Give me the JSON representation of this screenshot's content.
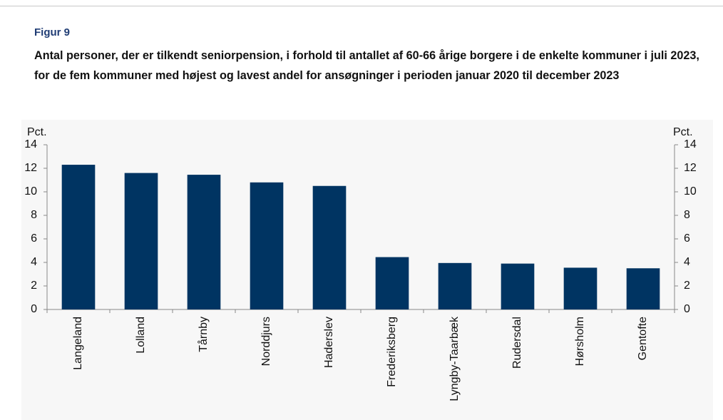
{
  "chart_data": {
    "type": "bar",
    "figure_label": "Figur 9",
    "title": "Antal personer, der er tilkendt seniorpension, i forhold til antallet af 60-66 årige borgere i de enkelte kommuner i juli 2023, for de fem kommuner med højest og lavest andel for ansøgninger i perioden januar 2020 til december 2023",
    "y_label": "Pct.",
    "y2_label": "Pct.",
    "categories": [
      "Langeland",
      "Lolland",
      "Tårnby",
      "Norddjurs",
      "Haderslev",
      "Frederiksberg",
      "Lyngby-Taarbæk",
      "Rudersdal",
      "Hørsholm",
      "Gentofte"
    ],
    "values": [
      12.3,
      11.6,
      11.45,
      10.8,
      10.5,
      4.45,
      3.95,
      3.9,
      3.55,
      3.5
    ],
    "color": "#003462",
    "ylim": [
      0,
      14
    ],
    "yticks": [
      0,
      2,
      4,
      6,
      8,
      10,
      12,
      14
    ],
    "y2lim": [
      0,
      14
    ],
    "y2ticks": [
      0,
      2,
      4,
      6,
      8,
      10,
      12,
      14
    ],
    "grid": false
  }
}
